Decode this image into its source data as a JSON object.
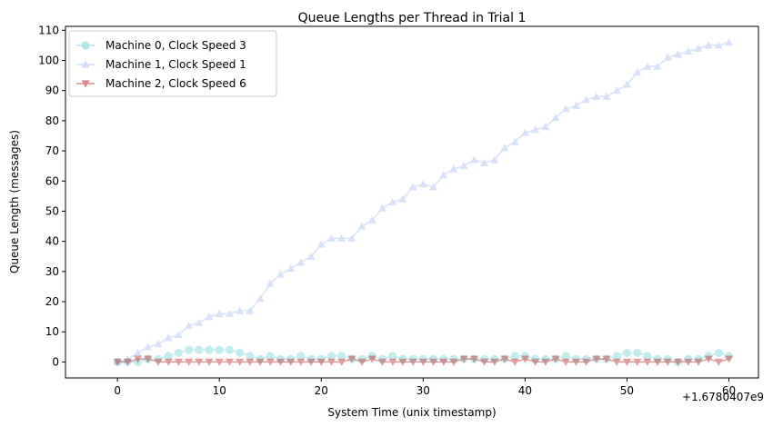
{
  "chart_data": {
    "type": "line",
    "title": "Queue Lengths per Thread in Trial 1",
    "xlabel": "System Time (unix timestamp)",
    "ylabel": "Queue Length (messages)",
    "x_offset_label": "+1.6780407e9",
    "xlim": [
      -5.1,
      62.9
    ],
    "ylim": [
      -5.3,
      111.3
    ],
    "xticks": [
      0,
      10,
      20,
      30,
      40,
      50,
      60
    ],
    "yticks": [
      0,
      10,
      20,
      30,
      40,
      50,
      60,
      70,
      80,
      90,
      100,
      110
    ],
    "grid": false,
    "legend_position": "top-left",
    "series": [
      {
        "name": "Machine 0, Clock Speed 3",
        "color": "#76d7d7",
        "marker": "circle",
        "x": [
          0,
          1,
          2,
          3,
          4,
          5,
          6,
          7,
          8,
          9,
          10,
          11,
          12,
          13,
          14,
          15,
          16,
          17,
          18,
          19,
          20,
          21,
          22,
          23,
          24,
          25,
          26,
          27,
          28,
          29,
          30,
          31,
          32,
          33,
          34,
          35,
          36,
          37,
          38,
          39,
          40,
          41,
          42,
          43,
          44,
          45,
          46,
          47,
          48,
          49,
          50,
          51,
          52,
          53,
          54,
          55,
          56,
          57,
          58,
          59,
          60
        ],
        "values": [
          0,
          0,
          0,
          1,
          1,
          2,
          3,
          4,
          4,
          4,
          4,
          4,
          3,
          2,
          1,
          2,
          1,
          1,
          2,
          1,
          1,
          2,
          2,
          1,
          1,
          2,
          1,
          2,
          1,
          1,
          1,
          1,
          1,
          1,
          1,
          1,
          1,
          1,
          1,
          2,
          2,
          1,
          1,
          1,
          2,
          1,
          1,
          1,
          1,
          2,
          3,
          3,
          2,
          1,
          1,
          0,
          1,
          1,
          2,
          3,
          2
        ]
      },
      {
        "name": "Machine 1, Clock Speed 1",
        "color": "#a8c1f0",
        "marker": "triangle-up",
        "x": [
          0,
          1,
          2,
          3,
          4,
          5,
          6,
          7,
          8,
          9,
          10,
          11,
          12,
          13,
          14,
          15,
          16,
          17,
          18,
          19,
          20,
          21,
          22,
          23,
          24,
          25,
          26,
          27,
          28,
          29,
          30,
          31,
          32,
          33,
          34,
          35,
          36,
          37,
          38,
          39,
          40,
          41,
          42,
          43,
          44,
          45,
          46,
          47,
          48,
          49,
          50,
          51,
          52,
          53,
          54,
          55,
          56,
          57,
          58,
          59,
          60
        ],
        "values": [
          0,
          1,
          3,
          5,
          6,
          8,
          9,
          12,
          13,
          15,
          16,
          16,
          17,
          17,
          21,
          26,
          29,
          31,
          33,
          35,
          39,
          41,
          41,
          41,
          45,
          47,
          51,
          53,
          54,
          58,
          59,
          58,
          62,
          64,
          65,
          67,
          66,
          67,
          71,
          73,
          76,
          77,
          78,
          81,
          84,
          85,
          87,
          88,
          88,
          90,
          92,
          96,
          98,
          98,
          101,
          102,
          103,
          104,
          105,
          105,
          106
        ]
      },
      {
        "name": "Machine 2, Clock Speed 6",
        "color": "#c0282c",
        "marker": "triangle-down",
        "x": [
          0,
          1,
          2,
          3,
          4,
          5,
          6,
          7,
          8,
          9,
          10,
          11,
          12,
          13,
          14,
          15,
          16,
          17,
          18,
          19,
          20,
          21,
          22,
          23,
          24,
          25,
          26,
          27,
          28,
          29,
          30,
          31,
          32,
          33,
          34,
          35,
          36,
          37,
          38,
          39,
          40,
          41,
          42,
          43,
          44,
          45,
          46,
          47,
          48,
          49,
          50,
          51,
          52,
          53,
          54,
          55,
          56,
          57,
          58,
          59,
          60
        ],
        "values": [
          0,
          0,
          1,
          1,
          0,
          0,
          0,
          0,
          0,
          0,
          0,
          0,
          0,
          0,
          0,
          0,
          0,
          0,
          0,
          0,
          0,
          0,
          0,
          1,
          0,
          1,
          0,
          0,
          0,
          0,
          0,
          0,
          0,
          0,
          1,
          1,
          0,
          0,
          1,
          0,
          1,
          0,
          0,
          1,
          0,
          0,
          0,
          1,
          1,
          0,
          0,
          0,
          0,
          0,
          0,
          0,
          0,
          0,
          1,
          0,
          1
        ]
      }
    ]
  }
}
